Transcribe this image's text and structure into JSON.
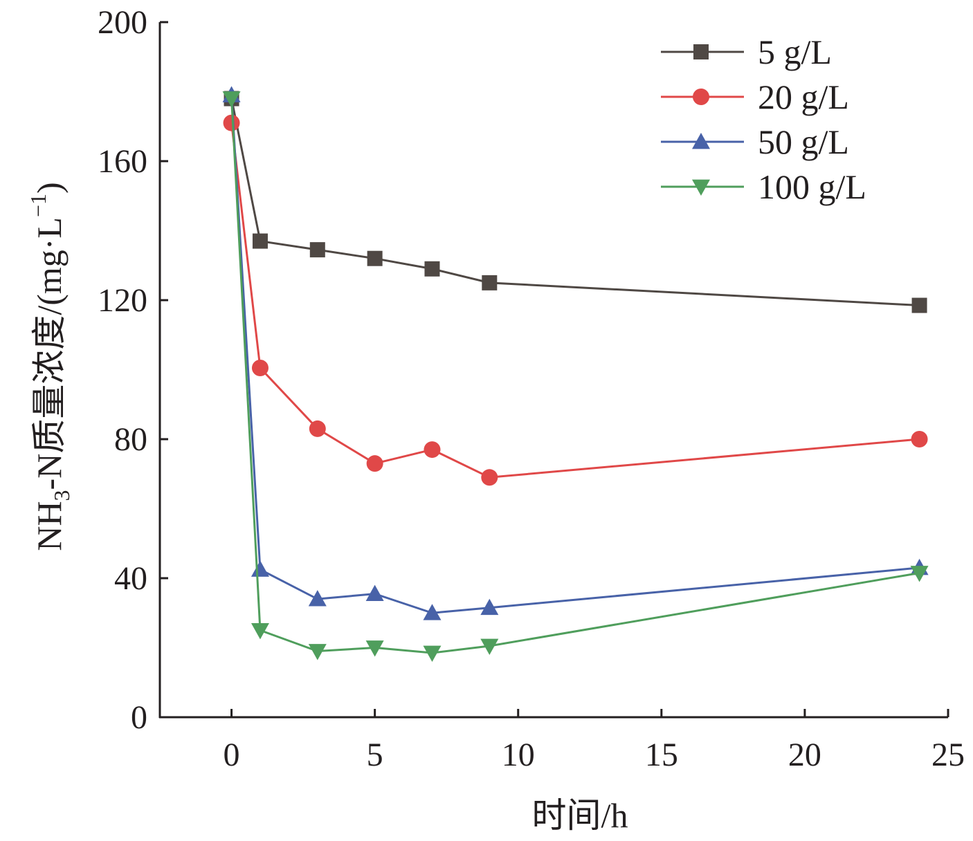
{
  "chart_data": {
    "type": "line",
    "xlabel": "时间/h",
    "ylabel_main": "NH",
    "ylabel_sub": "3",
    "ylabel_rest": "-N质量浓度/(mg·L",
    "ylabel_sup": "−1",
    "ylabel_close": ")",
    "xlim": [
      -2.5,
      25
    ],
    "ylim": [
      0,
      200
    ],
    "xticks": [
      0,
      5,
      10,
      15,
      20,
      25
    ],
    "yticks": [
      0,
      40,
      80,
      120,
      160,
      200
    ],
    "legend_position": "top-right",
    "grid": false,
    "x": [
      0,
      1,
      3,
      5,
      7,
      9,
      24
    ],
    "series": [
      {
        "name": "5 g/L",
        "color": "#4f4844",
        "marker": "square",
        "values": [
          178,
          137,
          134.5,
          132,
          129,
          125,
          118.5
        ]
      },
      {
        "name": "20 g/L",
        "color": "#e04848",
        "marker": "circle",
        "values": [
          171,
          100.5,
          83,
          73,
          77,
          69,
          80
        ]
      },
      {
        "name": "50 g/L",
        "color": "#4862a8",
        "marker": "triangle-up",
        "values": [
          179,
          42.5,
          34,
          35.5,
          30,
          31.5,
          43
        ]
      },
      {
        "name": "100 g/L",
        "color": "#4f9e5c",
        "marker": "triangle-down",
        "values": [
          178,
          25,
          19,
          20,
          18.5,
          20.5,
          41.5
        ]
      }
    ]
  }
}
